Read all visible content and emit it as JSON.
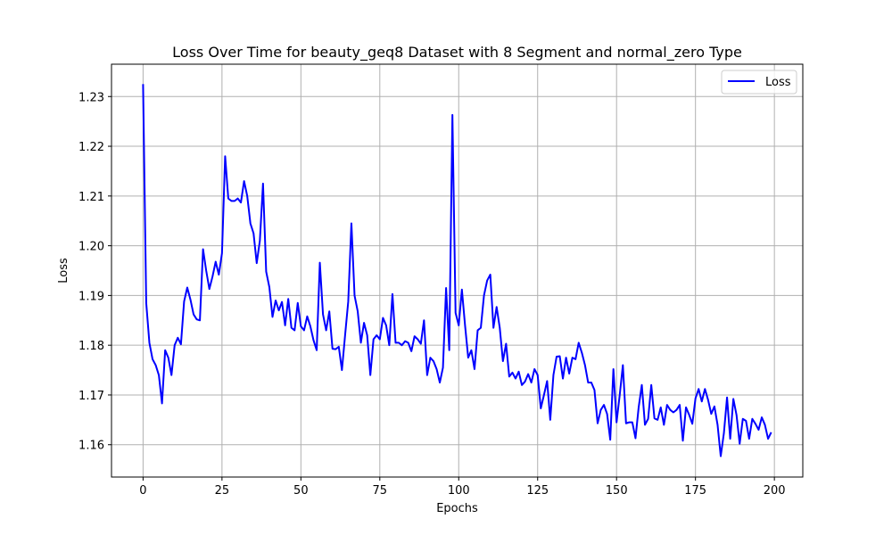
{
  "chart_data": {
    "type": "line",
    "title": "Loss Over Time for beauty_geq8 Dataset with 8 Segment and normal_zero Type",
    "xlabel": "Epochs",
    "ylabel": "Loss",
    "xlim": [
      -10,
      209
    ],
    "ylim": [
      1.1535,
      1.2365
    ],
    "xticks": [
      0,
      25,
      50,
      75,
      100,
      125,
      150,
      175,
      200
    ],
    "yticks": [
      1.16,
      1.17,
      1.18,
      1.19,
      1.2,
      1.21,
      1.22,
      1.23
    ],
    "ytick_labels": [
      "1.16",
      "1.17",
      "1.18",
      "1.19",
      "1.20",
      "1.21",
      "1.22",
      "1.23"
    ],
    "grid": true,
    "legend_position": "top-right",
    "line_color": "#0000ff",
    "series": [
      {
        "name": "Loss",
        "x_start": 0,
        "x_step": 1,
        "values": [
          1.2325,
          1.1885,
          1.1805,
          1.1772,
          1.176,
          1.174,
          1.1683,
          1.179,
          1.1775,
          1.174,
          1.18,
          1.1815,
          1.1802,
          1.1888,
          1.1916,
          1.1892,
          1.1862,
          1.1852,
          1.185,
          1.1993,
          1.195,
          1.1913,
          1.1938,
          1.1968,
          1.1942,
          1.1985,
          1.218,
          1.2095,
          1.209,
          1.209,
          1.2095,
          1.2087,
          1.213,
          1.21,
          1.2045,
          1.2025,
          1.1965,
          1.201,
          1.2125,
          1.1948,
          1.1917,
          1.1857,
          1.189,
          1.187,
          1.1887,
          1.184,
          1.1893,
          1.1835,
          1.183,
          1.1885,
          1.1838,
          1.183,
          1.1858,
          1.1838,
          1.181,
          1.179,
          1.1966,
          1.1862,
          1.183,
          1.1868,
          1.1793,
          1.1792,
          1.1797,
          1.175,
          1.182,
          1.1888,
          1.2045,
          1.19,
          1.1868,
          1.1805,
          1.1845,
          1.182,
          1.174,
          1.1812,
          1.182,
          1.1812,
          1.1855,
          1.184,
          1.18,
          1.1903,
          1.1805,
          1.1805,
          1.18,
          1.1808,
          1.1805,
          1.1788,
          1.1818,
          1.1812,
          1.1803,
          1.185,
          1.174,
          1.1775,
          1.1768,
          1.1752,
          1.1725,
          1.1755,
          1.1915,
          1.179,
          1.2263,
          1.1865,
          1.184,
          1.1912,
          1.184,
          1.1775,
          1.179,
          1.1752,
          1.183,
          1.1835,
          1.19,
          1.193,
          1.1942,
          1.1835,
          1.1877,
          1.1835,
          1.1768,
          1.1803,
          1.1737,
          1.1745,
          1.1733,
          1.1747,
          1.172,
          1.1727,
          1.1742,
          1.1725,
          1.1752,
          1.174,
          1.1673,
          1.17,
          1.1728,
          1.165,
          1.174,
          1.1777,
          1.1778,
          1.1733,
          1.1775,
          1.1743,
          1.1775,
          1.1772,
          1.1805,
          1.1785,
          1.176,
          1.1725,
          1.1725,
          1.171,
          1.1643,
          1.167,
          1.168,
          1.1662,
          1.161,
          1.1752,
          1.1645,
          1.17,
          1.176,
          1.1643,
          1.1645,
          1.1645,
          1.1613,
          1.1675,
          1.172,
          1.164,
          1.1652,
          1.172,
          1.1653,
          1.165,
          1.1675,
          1.164,
          1.168,
          1.167,
          1.1665,
          1.167,
          1.168,
          1.1608,
          1.1675,
          1.166,
          1.1642,
          1.1693,
          1.1712,
          1.1687,
          1.1712,
          1.169,
          1.1662,
          1.1677,
          1.164,
          1.1577,
          1.1623,
          1.1695,
          1.1612,
          1.1692,
          1.166,
          1.1602,
          1.1652,
          1.1648,
          1.1612,
          1.1652,
          1.1642,
          1.163,
          1.1655,
          1.164,
          1.1612,
          1.1625
        ]
      }
    ]
  }
}
